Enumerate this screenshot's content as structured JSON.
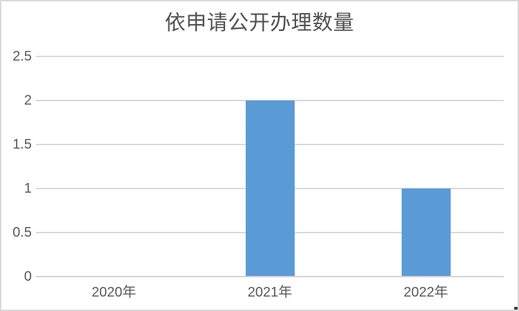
{
  "chart_data": {
    "type": "bar",
    "title": "依申请公开办理数量",
    "categories": [
      "2020年",
      "2021年",
      "2022年"
    ],
    "values": [
      0,
      2,
      1
    ],
    "xlabel": "",
    "ylabel": "",
    "ylim": [
      0,
      2.5
    ],
    "ytick_labels": [
      "0",
      "0.5",
      "1",
      "1.5",
      "2",
      "2.5"
    ],
    "grid": true,
    "legend": false,
    "colors": {
      "bar": "#5B9BD5",
      "gridline": "#D9D9D9",
      "axis_line": "#D3D3D3",
      "tick_label": "#595959",
      "title": "#525252",
      "border": "#D9D9D9",
      "background": "#FFFFFF"
    }
  }
}
